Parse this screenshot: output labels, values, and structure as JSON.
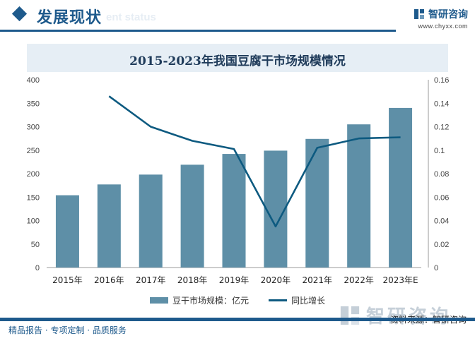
{
  "header": {
    "title": "发展现状",
    "subtitle": "ent status",
    "brand_name": "智研咨询",
    "brand_url": "www.chyxx.com"
  },
  "chart_data": {
    "type": "bar",
    "title": "2015-2023年我国豆腐干市场规模情况",
    "categories": [
      "2015年",
      "2016年",
      "2017年",
      "2018年",
      "2019年",
      "2020年",
      "2021年",
      "2022年",
      "2023年E"
    ],
    "series": [
      {
        "name": "豆干市场规模：亿元",
        "type": "bar",
        "axis": "left",
        "values": [
          154,
          177,
          198,
          219,
          242,
          249,
          274,
          305,
          340
        ]
      },
      {
        "name": "同比增长",
        "type": "line",
        "axis": "right",
        "values": [
          null,
          0.146,
          0.12,
          0.108,
          0.101,
          0.035,
          0.102,
          0.11,
          0.111
        ]
      }
    ],
    "y_left": {
      "range": [
        0,
        400
      ],
      "ticks": [
        0,
        50,
        100,
        150,
        200,
        250,
        300,
        350,
        400
      ]
    },
    "y_right": {
      "range": [
        0,
        0.16
      ],
      "ticks": [
        "0",
        "0.02",
        "0.04",
        "0.06",
        "0.08",
        "0.1",
        "0.12",
        "0.14",
        "0.16"
      ]
    },
    "grid": false,
    "legend_position": "bottom",
    "colors": {
      "bar": "#5e8fa7",
      "line": "#0d5a80"
    }
  },
  "source": "资料来源：智研咨询",
  "watermark": "智研咨询",
  "footer": {
    "text": "精品报告 · 专项定制 · 品质服务"
  }
}
